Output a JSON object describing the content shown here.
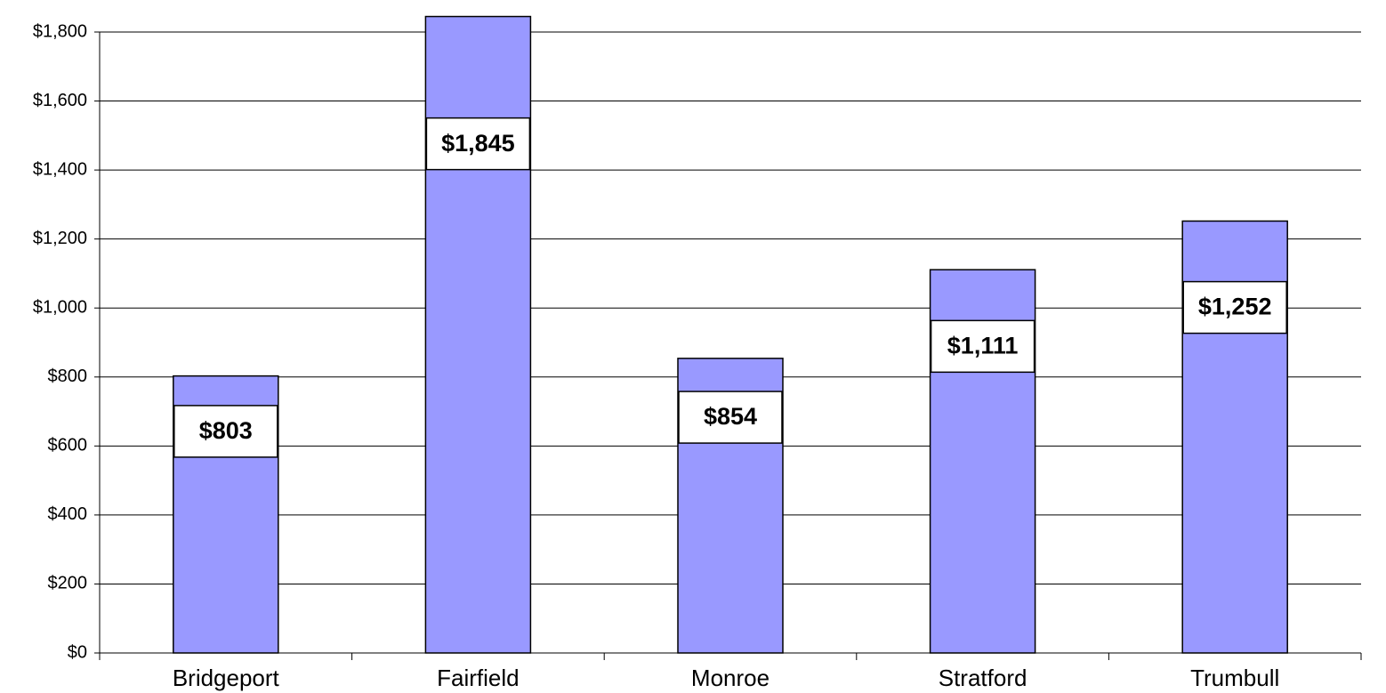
{
  "chart_data": {
    "type": "bar",
    "categories": [
      "Bridgeport",
      "Fairfield",
      "Monroe",
      "Stratford",
      "Trumbull"
    ],
    "values": [
      803,
      1845,
      854,
      1111,
      1252
    ],
    "value_labels": [
      "$803",
      "$1,845",
      "$854",
      "$1,111",
      "$1,252"
    ],
    "color": "#9999ff",
    "ylim": [
      0,
      1800
    ],
    "yticks": [
      {
        "value": 0,
        "label": "$0"
      },
      {
        "value": 200,
        "label": "$200"
      },
      {
        "value": 400,
        "label": "$400"
      },
      {
        "value": 600,
        "label": "$600"
      },
      {
        "value": 800,
        "label": "$800"
      },
      {
        "value": 1000,
        "label": "$1,000"
      },
      {
        "value": 1200,
        "label": "$1,200"
      },
      {
        "value": 1400,
        "label": "$1,400"
      },
      {
        "value": 1600,
        "label": "$1,600"
      },
      {
        "value": 1800,
        "label": "$1,800"
      }
    ],
    "grid": true
  }
}
